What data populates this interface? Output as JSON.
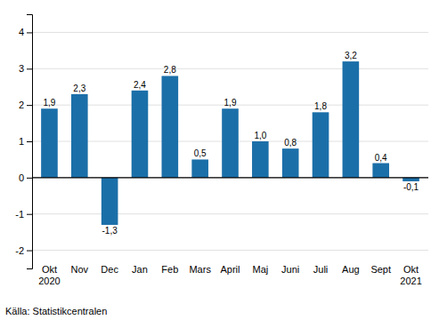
{
  "chart_data": {
    "type": "bar",
    "categories": [
      "Okt\n2020",
      "Nov",
      "Dec",
      "Jan",
      "Feb",
      "Mars",
      "April",
      "Maj",
      "Juni",
      "Juli",
      "Aug",
      "Sept",
      "Okt\n2021"
    ],
    "values": [
      1.9,
      2.3,
      -1.3,
      2.4,
      2.8,
      0.5,
      1.9,
      1.0,
      0.8,
      1.8,
      3.2,
      0.4,
      -0.1
    ],
    "value_labels": [
      "1,9",
      "2,3",
      "-1,3",
      "2,4",
      "2,8",
      "0,5",
      "1,9",
      "1,0",
      "0,8",
      "1,8",
      "3,2",
      "0,4",
      "-0,1"
    ],
    "data_labels": true,
    "color": "#1b6fa8",
    "ylim": [
      -2.5,
      4.5
    ],
    "yticks": [
      -2,
      -1,
      0,
      1,
      2,
      3,
      4
    ],
    "grid": true,
    "annotations": [
      "Källa: Statistikcentralen"
    ]
  }
}
